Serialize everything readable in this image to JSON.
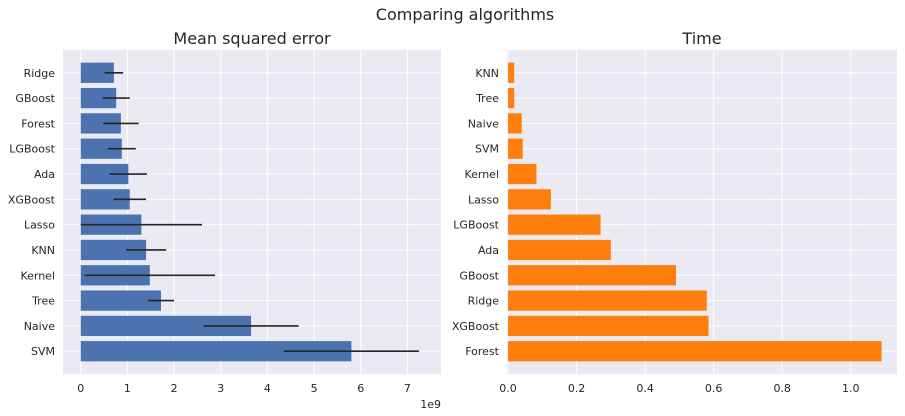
{
  "suptitle": "Comparing algorithms",
  "chart_data": [
    {
      "type": "bar",
      "orientation": "horizontal",
      "title": "Mean squared error",
      "xlabel": "",
      "ylabel": "",
      "axis_offset_label": "1e9",
      "categories": [
        "SVM",
        "Naive",
        "Tree",
        "Kernel",
        "KNN",
        "Lasso",
        "XGBoost",
        "Ada",
        "LGBoost",
        "Forest",
        "GBoost",
        "Ridge"
      ],
      "values": [
        5.8,
        3.65,
        1.72,
        1.48,
        1.4,
        1.3,
        1.05,
        1.02,
        0.88,
        0.86,
        0.76,
        0.71
      ],
      "errors": [
        1.45,
        1.02,
        0.28,
        1.4,
        0.43,
        1.3,
        0.35,
        0.4,
        0.3,
        0.38,
        0.29,
        0.2
      ],
      "xticks": [
        0,
        1,
        2,
        3,
        4,
        5,
        6,
        7
      ],
      "xlim": [
        -0.38,
        7.72
      ],
      "color": "#4c72b0",
      "background": "#eaeaf2",
      "grid": true
    },
    {
      "type": "bar",
      "orientation": "horizontal",
      "title": "Time",
      "xlabel": "",
      "ylabel": "",
      "categories": [
        "Forest",
        "XGBoost",
        "Ridge",
        "GBoost",
        "Ada",
        "LGBoost",
        "Lasso",
        "Kernel",
        "SVM",
        "Naive",
        "Tree",
        "KNN"
      ],
      "values": [
        1.09,
        0.585,
        0.58,
        0.49,
        0.3,
        0.27,
        0.125,
        0.083,
        0.043,
        0.04,
        0.018,
        0.018
      ],
      "xticks": [
        0.0,
        0.2,
        0.4,
        0.6,
        0.8,
        1.0
      ],
      "xlim": [
        -0.003,
        1.135
      ],
      "color": "#ff7f0e",
      "background": "#eaeaf2",
      "grid": true
    }
  ]
}
